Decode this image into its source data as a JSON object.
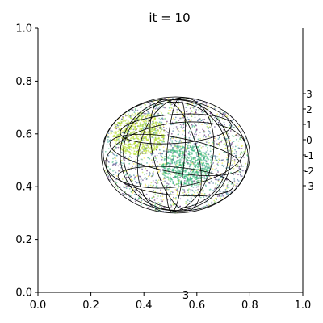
{
  "chart_data": {
    "type": "scatter",
    "title": "it = 10",
    "xlim": [
      0,
      1
    ],
    "ylim": [
      0,
      1
    ],
    "xticks": [
      "0.0",
      "0.2",
      "0.4",
      "0.6",
      "0.8",
      "1.0"
    ],
    "yticks": [
      "0.0",
      "0.2",
      "0.4",
      "0.6",
      "0.8",
      "1.0"
    ],
    "zticks": [
      "3",
      "2",
      "1",
      "0",
      "-1",
      "-2",
      "-3"
    ],
    "stray_label": "3",
    "grid": false,
    "sphere": {
      "cx": 0.52,
      "cy": 0.52,
      "rx": 0.28,
      "ry": 0.22
    },
    "point_colormap": "viridis",
    "dense_clusters": [
      {
        "x": 0.38,
        "y": 0.6,
        "color": "#b5de2b"
      },
      {
        "x": 0.56,
        "y": 0.48,
        "color": "#35b779"
      }
    ]
  },
  "colors": {
    "axis": "#000000",
    "wireframe": "#000000",
    "viridis": [
      "#440154",
      "#482878",
      "#3e4989",
      "#31688e",
      "#26828e",
      "#1f9e89",
      "#35b779",
      "#6ece58",
      "#b5de2b",
      "#fde725"
    ]
  }
}
